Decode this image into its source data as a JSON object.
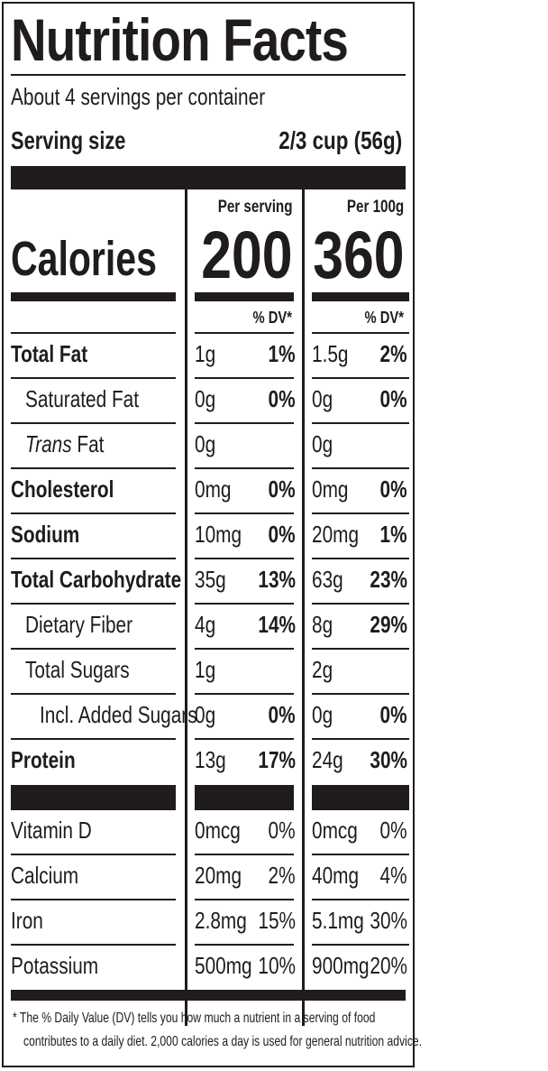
{
  "label": {
    "title": "Nutrition Facts",
    "servings_per_container": "About 4 servings per container",
    "serving_size_label": "Serving size",
    "serving_size_value": "2/3 cup (56g)",
    "calories_label": "Calories",
    "columns": [
      {
        "header": "Per serving",
        "calories": "200",
        "dv_header": "% DV*"
      },
      {
        "header": "Per 100g",
        "calories": "360",
        "dv_header": "% DV*"
      }
    ],
    "nutrients": [
      {
        "name": "Total Fat",
        "style": "bold",
        "per_serving": {
          "amount": "1g",
          "dv": "1%"
        },
        "per_100g": {
          "amount": "1.5g",
          "dv": "2%"
        }
      },
      {
        "name": "Saturated Fat",
        "style": "indent1",
        "per_serving": {
          "amount": "0g",
          "dv": "0%"
        },
        "per_100g": {
          "amount": "0g",
          "dv": "0%"
        }
      },
      {
        "name_prefix": "Trans",
        "name": " Fat",
        "style": "indent1",
        "per_serving": {
          "amount": "0g",
          "dv": ""
        },
        "per_100g": {
          "amount": "0g",
          "dv": ""
        }
      },
      {
        "name": "Cholesterol",
        "style": "bold",
        "per_serving": {
          "amount": "0mg",
          "dv": "0%"
        },
        "per_100g": {
          "amount": "0mg",
          "dv": "0%"
        }
      },
      {
        "name": "Sodium",
        "style": "bold",
        "per_serving": {
          "amount": "10mg",
          "dv": "0%"
        },
        "per_100g": {
          "amount": "20mg",
          "dv": "1%"
        }
      },
      {
        "name": "Total Carbohydrate",
        "style": "bold",
        "per_serving": {
          "amount": "35g",
          "dv": "13%"
        },
        "per_100g": {
          "amount": "63g",
          "dv": "23%"
        }
      },
      {
        "name": "Dietary Fiber",
        "style": "indent1",
        "per_serving": {
          "amount": "4g",
          "dv": "14%"
        },
        "per_100g": {
          "amount": "8g",
          "dv": "29%"
        }
      },
      {
        "name": "Total Sugars",
        "style": "indent1",
        "per_serving": {
          "amount": "1g",
          "dv": ""
        },
        "per_100g": {
          "amount": "2g",
          "dv": ""
        }
      },
      {
        "name": "Incl. Added Sugars",
        "style": "indent2",
        "per_serving": {
          "amount": "0g",
          "dv": "0%"
        },
        "per_100g": {
          "amount": "0g",
          "dv": "0%"
        }
      },
      {
        "name": "Protein",
        "style": "bold",
        "per_serving": {
          "amount": "13g",
          "dv": "17%"
        },
        "per_100g": {
          "amount": "24g",
          "dv": "30%"
        }
      }
    ],
    "vitamins": [
      {
        "name": "Vitamin D",
        "per_serving": {
          "amount": "0mcg",
          "dv": "0%"
        },
        "per_100g": {
          "amount": "0mcg",
          "dv": "0%"
        }
      },
      {
        "name": "Calcium",
        "per_serving": {
          "amount": "20mg",
          "dv": "2%"
        },
        "per_100g": {
          "amount": "40mg",
          "dv": "4%"
        }
      },
      {
        "name": "Iron",
        "per_serving": {
          "amount": "2.8mg",
          "dv": "15%"
        },
        "per_100g": {
          "amount": "5.1mg",
          "dv": "30%"
        }
      },
      {
        "name": "Potassium",
        "per_serving": {
          "amount": "500mg",
          "dv": "10%"
        },
        "per_100g": {
          "amount": "900mg",
          "dv": "20%"
        }
      }
    ],
    "footnote_line1": "* The % Daily Value (DV) tells you how much a nutrient in a serving of food",
    "footnote_line2": "contributes to a daily diet. 2,000 calories a day is used for general nutrition advice."
  },
  "colors": {
    "ink": "#1f1c1b",
    "background": "#ffffff"
  }
}
